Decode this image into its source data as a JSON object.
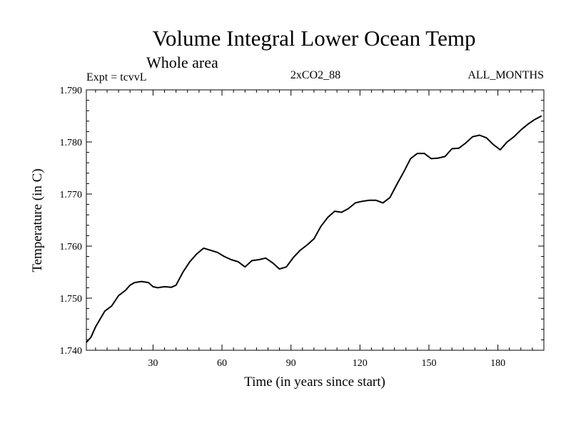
{
  "chart_data": {
    "type": "line",
    "title": "Volume Integral Lower Ocean Temp",
    "subtitle": "Whole area",
    "annotations": {
      "left": "Expt = tcvvL",
      "center": "2xCO2_88",
      "right": "ALL_MONTHS"
    },
    "xlabel": "Time (in years since start)",
    "ylabel": "Temperature (in C)",
    "xlim": [
      1,
      200
    ],
    "ylim": [
      1.74,
      1.79
    ],
    "x_ticks": [
      30,
      60,
      90,
      120,
      150,
      180
    ],
    "x_tick_labels": [
      "30",
      "60",
      "90",
      "120",
      "150",
      "180"
    ],
    "y_ticks": [
      1.74,
      1.75,
      1.76,
      1.77,
      1.78,
      1.79
    ],
    "y_tick_labels": [
      "1.740",
      "1.750",
      "1.760",
      "1.770",
      "1.780",
      "1.790"
    ],
    "grid": false,
    "line_color": "#000000",
    "series": [
      {
        "x": [
          1,
          3,
          5,
          7,
          9,
          12,
          15,
          18,
          20,
          22,
          25,
          28,
          30,
          32,
          35,
          38,
          40,
          43,
          46,
          49,
          52,
          55,
          58,
          61,
          64,
          67,
          70,
          73,
          76,
          79,
          82,
          85,
          88,
          91,
          94,
          97,
          100,
          103,
          106,
          109,
          112,
          115,
          118,
          121,
          124,
          127,
          130,
          133,
          136,
          139,
          142,
          145,
          148,
          151,
          154,
          157,
          160,
          163,
          166,
          169,
          172,
          175,
          178,
          181,
          184,
          187,
          190,
          193,
          196,
          199
        ],
        "y": [
          1.7415,
          1.7425,
          1.7445,
          1.746,
          1.7475,
          1.7485,
          1.7505,
          1.7515,
          1.7525,
          1.753,
          1.7532,
          1.753,
          1.7522,
          1.752,
          1.7522,
          1.7521,
          1.7525,
          1.755,
          1.757,
          1.7585,
          1.7596,
          1.7592,
          1.7588,
          1.758,
          1.7574,
          1.757,
          1.756,
          1.7572,
          1.7574,
          1.7577,
          1.7568,
          1.7556,
          1.756,
          1.7578,
          1.7592,
          1.7602,
          1.7614,
          1.7638,
          1.7655,
          1.7667,
          1.7665,
          1.7672,
          1.7683,
          1.7686,
          1.7688,
          1.7688,
          1.7683,
          1.7693,
          1.7718,
          1.7742,
          1.7768,
          1.7778,
          1.7778,
          1.7768,
          1.7769,
          1.7772,
          1.7787,
          1.7788,
          1.7798,
          1.781,
          1.7813,
          1.7808,
          1.7795,
          1.7785,
          1.78,
          1.781,
          1.7823,
          1.7834,
          1.7843,
          1.785
        ]
      }
    ]
  }
}
